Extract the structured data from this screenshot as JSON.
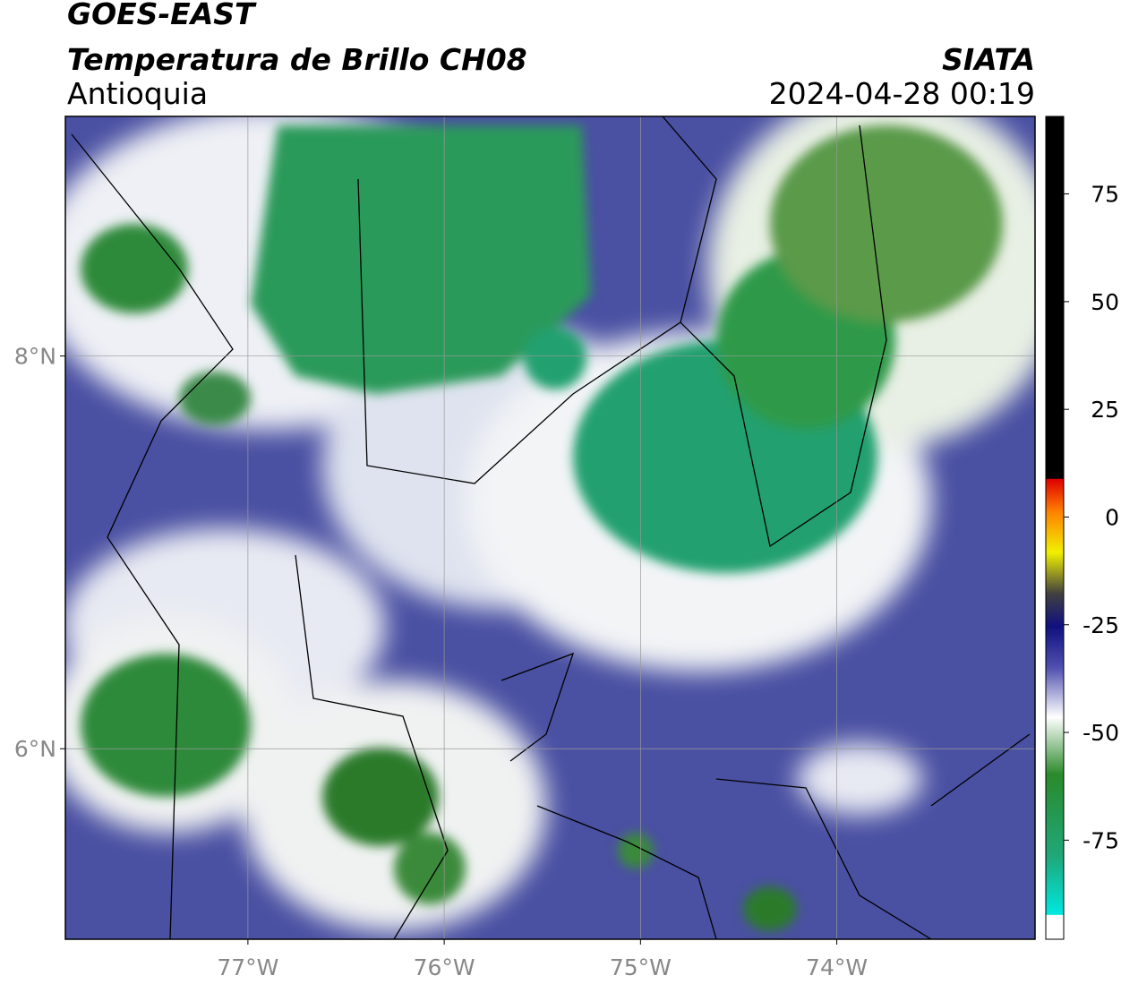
{
  "header": {
    "title": "GOES-EAST",
    "subtitle": "Temperatura de Brillo CH08",
    "region": "Antioquia",
    "source": "SIATA",
    "datetime": "2024-04-28 00:19"
  },
  "map": {
    "xlim": [
      -77.93,
      -72.99
    ],
    "ylim": [
      5.03,
      9.22
    ],
    "x_ticks": [
      {
        "value": -77,
        "label": "77°W"
      },
      {
        "value": -76,
        "label": "76°W"
      },
      {
        "value": -75,
        "label": "75°W"
      },
      {
        "value": -74,
        "label": "74°W"
      }
    ],
    "y_ticks": [
      {
        "value": 8,
        "label": "8°N"
      },
      {
        "value": 6,
        "label": "6°N"
      }
    ]
  },
  "colorbar": {
    "lim": [
      -98,
      93
    ],
    "ticks": [
      75,
      50,
      25,
      0,
      -25,
      -50,
      -75
    ]
  }
}
